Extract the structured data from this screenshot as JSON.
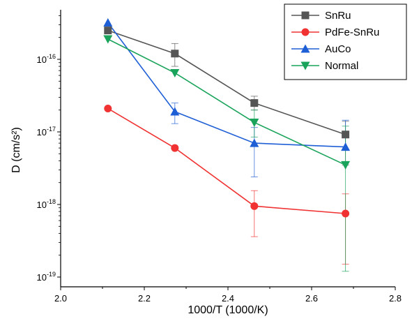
{
  "chart_data": {
    "type": "line",
    "xlabel": "1000/T (1000/K)",
    "ylabel": "D (cm/s²)",
    "xlim": [
      2.0,
      2.8
    ],
    "ylim": [
      1e-19,
      5e-16
    ],
    "yscale": "log",
    "x_ticks": [
      "2.0",
      "2.2",
      "2.4",
      "2.6",
      "2.8"
    ],
    "y_ticks": [
      {
        "base": "10",
        "exp": "-19"
      },
      {
        "base": "10",
        "exp": "-18"
      },
      {
        "base": "10",
        "exp": "-17"
      },
      {
        "base": "10",
        "exp": "-16"
      }
    ],
    "legend_position": "top-right",
    "grid": false,
    "x": [
      2.113,
      2.273,
      2.463,
      2.681
    ],
    "series": [
      {
        "name": "SnRu",
        "color": "#555555",
        "marker": "square",
        "values": [
          2.5e-16,
          1.2e-16,
          2.5e-17,
          9.2e-18
        ],
        "err_low": [
          null,
          8e-17,
          2e-17,
          3.5e-18
        ],
        "err_high": [
          null,
          1.65e-16,
          3.1e-17,
          1.4e-17
        ]
      },
      {
        "name": "PdFe-SnRu",
        "color": "#f03232",
        "marker": "circle",
        "values": [
          2.1e-17,
          6e-18,
          9.5e-19,
          7.5e-19
        ],
        "err_low": [
          null,
          null,
          3.6e-19,
          1.5e-19
        ],
        "err_high": [
          null,
          null,
          1.55e-18,
          1.4e-18
        ]
      },
      {
        "name": "AuCo",
        "color": "#1f5fd6",
        "marker": "triangle-up",
        "values": [
          3.2e-16,
          1.9e-17,
          7e-18,
          6.2e-18
        ],
        "err_low": [
          null,
          1.3e-17,
          2.4e-18,
          null
        ],
        "err_high": [
          null,
          2.5e-17,
          1.15e-17,
          1.45e-17
        ]
      },
      {
        "name": "Normal",
        "color": "#1aa35b",
        "marker": "triangle-down",
        "values": [
          1.9e-16,
          6.5e-17,
          1.35e-17,
          3.5e-18
        ],
        "err_low": [
          null,
          null,
          8.5e-18,
          1.2e-19
        ],
        "err_high": [
          null,
          null,
          2e-17,
          1.2e-17
        ]
      }
    ]
  }
}
